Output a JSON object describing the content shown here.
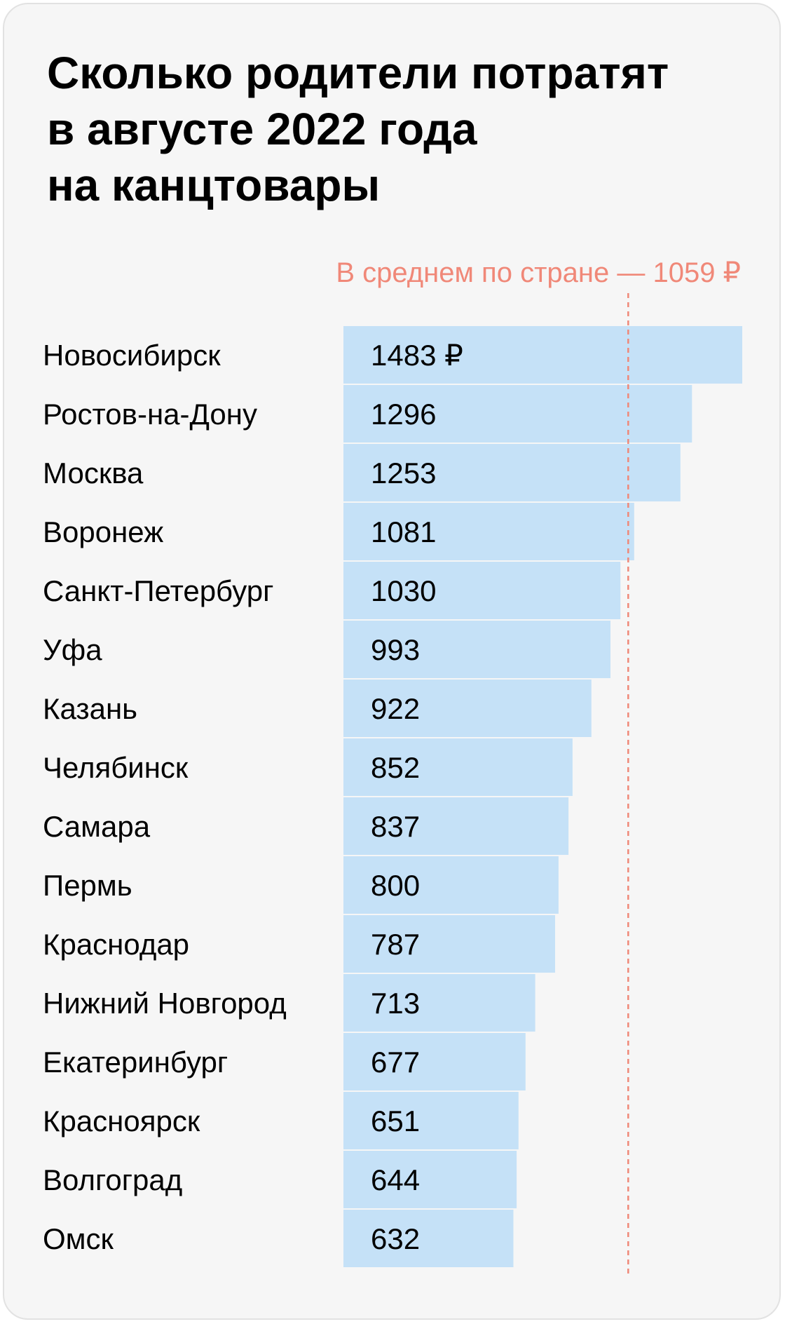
{
  "title_lines": [
    "Сколько родители потратят",
    "в августе 2022 года",
    "на канцтовары"
  ],
  "colors": {
    "background": "#f6f6f6",
    "bar": "#c5e1f7",
    "text": "#000000",
    "average": "#f08878"
  },
  "chart_data": {
    "type": "bar",
    "orientation": "horizontal",
    "title": "Сколько родители потратят в августе 2022 года на канцтовары",
    "categories": [
      "Новосибирск",
      "Ростов-на-Дону",
      "Москва",
      "Воронеж",
      "Санкт-Петербург",
      "Уфа",
      "Казань",
      "Челябинск",
      "Самара",
      "Пермь",
      "Краснодар",
      "Нижний Новгород",
      "Екатеринбург",
      "Красноярск",
      "Волгоград",
      "Омск"
    ],
    "values": [
      1483,
      1296,
      1253,
      1081,
      1030,
      993,
      922,
      852,
      837,
      800,
      787,
      713,
      677,
      651,
      644,
      632
    ],
    "value_labels": [
      "1483 ₽",
      "1296",
      "1253",
      "1081",
      "1030",
      "993",
      "922",
      "852",
      "837",
      "800",
      "787",
      "713",
      "677",
      "651",
      "644",
      "632"
    ],
    "average": {
      "value": 1059,
      "label": "В среднем по стране — 1059 ₽"
    },
    "grid": false,
    "legend": "none"
  }
}
